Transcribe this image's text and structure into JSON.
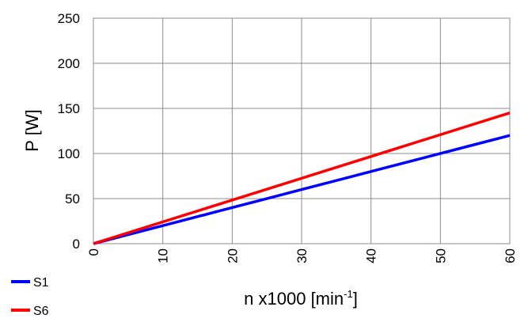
{
  "chart_data": {
    "type": "line",
    "xlabel_main": "n x1000  [min",
    "xlabel_sup": "-1",
    "xlabel_close": "]",
    "ylabel": "P [W]",
    "xlim": [
      0,
      60
    ],
    "ylim": [
      0,
      250
    ],
    "xticks": [
      "0",
      "10",
      "20",
      "30",
      "40",
      "50",
      "60"
    ],
    "yticks": [
      "0",
      "50",
      "100",
      "150",
      "200",
      "250"
    ],
    "grid": true,
    "legend_position": "bottom-left",
    "series": [
      {
        "name": "S1",
        "color": "#0000ff",
        "x": [
          0,
          6,
          12,
          18,
          24,
          30,
          36,
          42,
          48,
          54,
          60
        ],
        "y": [
          0,
          12,
          24,
          36,
          48,
          60,
          72,
          84,
          96,
          108,
          120
        ]
      },
      {
        "name": "S6",
        "color": "#ff0000",
        "x": [
          0,
          60
        ],
        "y": [
          0,
          145
        ]
      }
    ]
  }
}
